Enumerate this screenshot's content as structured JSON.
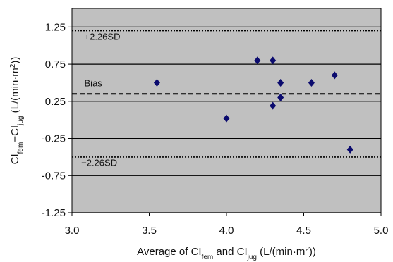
{
  "chart_data": {
    "type": "scatter",
    "title": "",
    "xlabel": {
      "main1": "Average of CI",
      "sub1": "fem",
      "main2": " and CI",
      "sub2": "jug",
      "main3": " (L/(min·m",
      "sup3": "2",
      "main4": "))"
    },
    "ylabel": {
      "main1": "CI",
      "sub1": "fem",
      "main2": "−CI",
      "sub2": "jug",
      "main3": " (L/(min·m",
      "sup3": "2",
      "main4": "))"
    },
    "xlim": [
      3.0,
      5.0
    ],
    "ylim": [
      -1.25,
      1.5
    ],
    "x_ticks": [
      3.0,
      3.5,
      4.0,
      4.5,
      5.0
    ],
    "x_tick_labels": [
      "3.0",
      "3.5",
      "4.0",
      "4.5",
      "5.0"
    ],
    "y_ticks": [
      1.25,
      0.75,
      0.25,
      -0.25,
      -0.75,
      -1.25
    ],
    "y_tick_labels": [
      "1.25",
      "0.75",
      "0.25",
      "-0.25",
      "-0.75",
      "-1.25"
    ],
    "grid": true,
    "plot_background": "#c0c0c0",
    "marker_color": "#0b0b6e",
    "marker": "diamond",
    "points": [
      {
        "x": 3.55,
        "y": 0.5
      },
      {
        "x": 4.0,
        "y": 0.02
      },
      {
        "x": 4.2,
        "y": 0.8
      },
      {
        "x": 4.3,
        "y": 0.8
      },
      {
        "x": 4.3,
        "y": 0.19
      },
      {
        "x": 4.35,
        "y": 0.5
      },
      {
        "x": 4.35,
        "y": 0.3
      },
      {
        "x": 4.55,
        "y": 0.5
      },
      {
        "x": 4.7,
        "y": 0.6
      },
      {
        "x": 4.8,
        "y": -0.4
      }
    ],
    "reference_lines": [
      {
        "label": "+2.26SD",
        "y": 1.2,
        "style": "dotted",
        "label_x": 3.08,
        "label_y": 1.08
      },
      {
        "label": "Bias",
        "y": 0.35,
        "style": "dashed",
        "label_x": 3.08,
        "label_y": 0.45
      },
      {
        "label": "−2.26SD",
        "y": -0.5,
        "style": "dotted",
        "label_x": 3.06,
        "label_y": -0.62
      }
    ]
  }
}
